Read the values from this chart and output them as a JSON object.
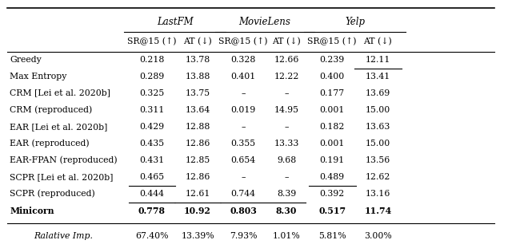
{
  "figsize": [
    6.4,
    3.11
  ],
  "dpi": 100,
  "col_groups": [
    {
      "label": "LastFM",
      "span": [
        0,
        1
      ]
    },
    {
      "label": "MovieLens",
      "span": [
        2,
        3
      ]
    },
    {
      "label": "Yelp",
      "span": [
        4,
        5
      ]
    }
  ],
  "col_headers": [
    "SR@15 (↑)",
    "AT (↓)",
    "SR@15 (↑)",
    "AT (↓)",
    "SR@15 (↑)",
    "AT (↓)"
  ],
  "rows": [
    {
      "name": "Greedy",
      "vals": [
        "0.218",
        "13.78",
        "0.328",
        "12.66",
        "0.239",
        "12.11"
      ],
      "underline": [
        false,
        false,
        false,
        false,
        false,
        true
      ],
      "bold": [
        false,
        false,
        false,
        false,
        false,
        false
      ],
      "small_caps": false
    },
    {
      "name": "Max Entropy",
      "vals": [
        "0.289",
        "13.88",
        "0.401",
        "12.22",
        "0.400",
        "13.41"
      ],
      "underline": [
        false,
        false,
        false,
        false,
        false,
        false
      ],
      "bold": [
        false,
        false,
        false,
        false,
        false,
        false
      ],
      "small_caps": false
    },
    {
      "name": "CRM [Lei et al. 2020b]",
      "vals": [
        "0.325",
        "13.75",
        "–",
        "–",
        "0.177",
        "13.69"
      ],
      "underline": [
        false,
        false,
        false,
        false,
        false,
        false
      ],
      "bold": [
        false,
        false,
        false,
        false,
        false,
        false
      ],
      "small_caps": false
    },
    {
      "name": "CRM (reproduced)",
      "vals": [
        "0.311",
        "13.64",
        "0.019",
        "14.95",
        "0.001",
        "15.00"
      ],
      "underline": [
        false,
        false,
        false,
        false,
        false,
        false
      ],
      "bold": [
        false,
        false,
        false,
        false,
        false,
        false
      ],
      "small_caps": false
    },
    {
      "name": "EAR [Lei et al. 2020b]",
      "vals": [
        "0.429",
        "12.88",
        "–",
        "–",
        "0.182",
        "13.63"
      ],
      "underline": [
        false,
        false,
        false,
        false,
        false,
        false
      ],
      "bold": [
        false,
        false,
        false,
        false,
        false,
        false
      ],
      "small_caps": false
    },
    {
      "name": "EAR (reproduced)",
      "vals": [
        "0.435",
        "12.86",
        "0.355",
        "13.33",
        "0.001",
        "15.00"
      ],
      "underline": [
        false,
        false,
        false,
        false,
        false,
        false
      ],
      "bold": [
        false,
        false,
        false,
        false,
        false,
        false
      ],
      "small_caps": false
    },
    {
      "name": "EAR-FPAN (reproduced)",
      "vals": [
        "0.431",
        "12.85",
        "0.654",
        "9.68",
        "0.191",
        "13.56"
      ],
      "underline": [
        false,
        false,
        false,
        false,
        false,
        false
      ],
      "bold": [
        false,
        false,
        false,
        false,
        false,
        false
      ],
      "small_caps": false
    },
    {
      "name": "SCPR [Lei et al. 2020b]",
      "vals": [
        "0.465",
        "12.86",
        "–",
        "–",
        "0.489",
        "12.62"
      ],
      "underline": [
        true,
        false,
        false,
        false,
        true,
        false
      ],
      "bold": [
        false,
        false,
        false,
        false,
        false,
        false
      ],
      "small_caps": false
    },
    {
      "name": "SCPR (reproduced)",
      "vals": [
        "0.444",
        "12.61",
        "0.744",
        "8.39",
        "0.392",
        "13.16"
      ],
      "underline": [
        true,
        true,
        true,
        true,
        false,
        false
      ],
      "bold": [
        false,
        false,
        false,
        false,
        false,
        false
      ],
      "small_caps": false
    },
    {
      "name": "Minicorn",
      "vals": [
        "0.778",
        "10.92",
        "0.803",
        "8.30",
        "0.517",
        "11.74"
      ],
      "underline": [
        false,
        false,
        false,
        false,
        false,
        false
      ],
      "bold": [
        true,
        true,
        true,
        true,
        true,
        true
      ],
      "small_caps": true
    }
  ],
  "footer": {
    "name": "Ralative Imp.",
    "vals": [
      "67.40%",
      "13.39%",
      "7.93%",
      "1.01%",
      "5.81%",
      "3.00%"
    ]
  },
  "background_color": "#ffffff",
  "text_color": "#000000",
  "font_size": 7.8,
  "header_font_size": 7.8,
  "group_font_size": 8.5
}
